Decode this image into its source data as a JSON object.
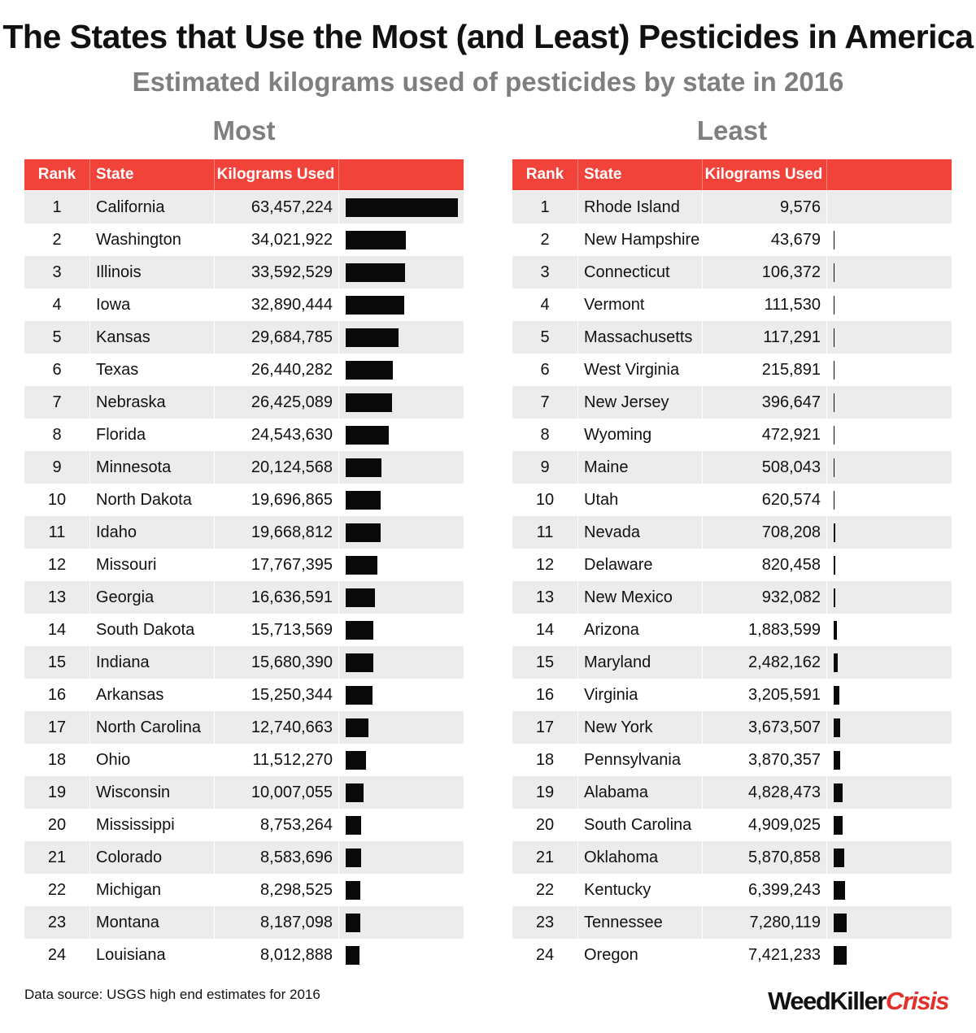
{
  "title": "The States that Use the Most (and Least) Pesticides in America",
  "subtitle": "Estimated kilograms used of pesticides by state in 2016",
  "source": "Data source: USGS high end estimates for 2016",
  "logo": {
    "part1": "WeedKiller",
    "part2": "Crisis"
  },
  "colors": {
    "header": "#f2433b",
    "bar": "#0a0a0a",
    "stripe": "#ececec",
    "title_gray": "#7f7f7f"
  },
  "columns": {
    "rank": "Rank",
    "state": "State",
    "kg": "Kilograms Used"
  },
  "chart_data": [
    {
      "type": "bar",
      "panel_title": "Most",
      "categories": [
        "California",
        "Washington",
        "Illinois",
        "Iowa",
        "Kansas",
        "Texas",
        "Nebraska",
        "Florida",
        "Minnesota",
        "North Dakota",
        "Idaho",
        "Missouri",
        "Georgia",
        "South Dakota",
        "Indiana",
        "Arkansas",
        "North Carolina",
        "Ohio",
        "Wisconsin",
        "Mississippi",
        "Colorado",
        "Michigan",
        "Montana",
        "Louisiana"
      ],
      "ranks": [
        1,
        2,
        3,
        4,
        5,
        6,
        7,
        8,
        9,
        10,
        11,
        12,
        13,
        14,
        15,
        16,
        17,
        18,
        19,
        20,
        21,
        22,
        23,
        24
      ],
      "labels": [
        "63,457,224",
        "34,021,922",
        "33,592,529",
        "32,890,444",
        "29,684,785",
        "26,440,282",
        "26,425,089",
        "24,543,630",
        "20,124,568",
        "19,696,865",
        "19,668,812",
        "17,767,395",
        "16,636,591",
        "15,713,569",
        "15,680,390",
        "15,250,344",
        "12,740,663",
        "11,512,270",
        "10,007,055",
        "8,753,264",
        "8,583,696",
        "8,298,525",
        "8,187,098",
        "8,012,888"
      ],
      "values": [
        63457224,
        34021922,
        33592529,
        32890444,
        29684785,
        26440282,
        26425089,
        24543630,
        20124568,
        19696865,
        19668812,
        17767395,
        16636591,
        15713569,
        15680390,
        15250344,
        12740663,
        11512270,
        10007055,
        8753264,
        8583696,
        8298525,
        8187098,
        8012888
      ],
      "xlim": [
        0,
        63457224
      ]
    },
    {
      "type": "bar",
      "panel_title": "Least",
      "categories": [
        "Rhode Island",
        "New Hampshire",
        "Connecticut",
        "Vermont",
        "Massachusetts",
        "West Virginia",
        "New Jersey",
        "Wyoming",
        "Maine",
        "Utah",
        "Nevada",
        "Delaware",
        "New Mexico",
        "Arizona",
        "Maryland",
        "Virginia",
        "New York",
        "Pennsylvania",
        "Alabama",
        "South Carolina",
        "Oklahoma",
        "Kentucky",
        "Tennessee",
        "Oregon"
      ],
      "ranks": [
        1,
        2,
        3,
        4,
        5,
        6,
        7,
        8,
        9,
        10,
        11,
        12,
        13,
        14,
        15,
        16,
        17,
        18,
        19,
        20,
        21,
        22,
        23,
        24
      ],
      "labels": [
        "9,576",
        "43,679",
        "106,372",
        "111,530",
        "117,291",
        "215,891",
        "396,647",
        "472,921",
        "508,043",
        "620,574",
        "708,208",
        "820,458",
        "932,082",
        "1,883,599",
        "2,482,162",
        "3,205,591",
        "3,673,507",
        "3,870,357",
        "4,828,473",
        "4,909,025",
        "5,870,858",
        "6,399,243",
        "7,280,119",
        "7,421,233"
      ],
      "values": [
        9576,
        43679,
        106372,
        111530,
        117291,
        215891,
        396647,
        472921,
        508043,
        620574,
        708208,
        820458,
        932082,
        1883599,
        2482162,
        3205591,
        3673507,
        3870357,
        4828473,
        4909025,
        5870858,
        6399243,
        7280119,
        7421233
      ],
      "xlim": [
        0,
        63457224
      ]
    }
  ]
}
